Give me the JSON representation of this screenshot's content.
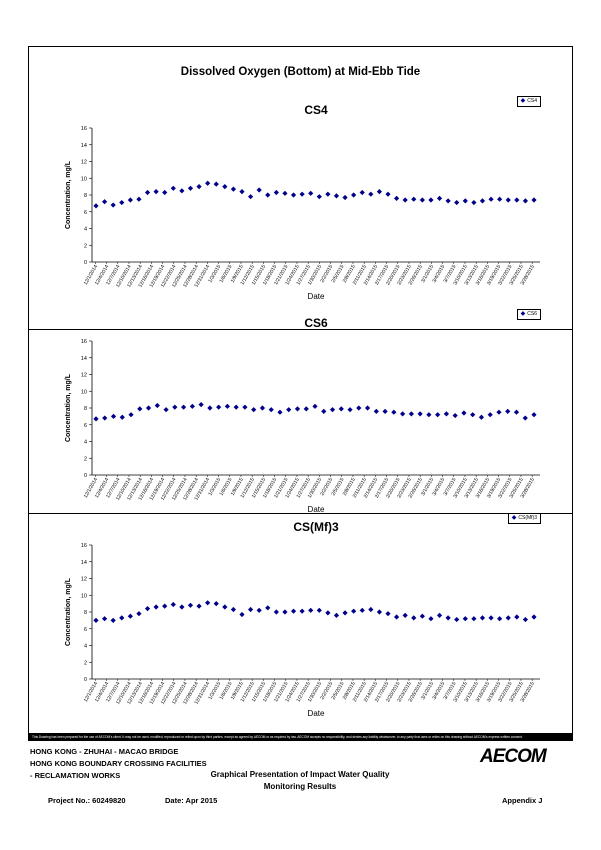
{
  "page": {
    "title": "Dissolved Oxygen (Bottom) at Mid-Ebb Tide"
  },
  "footer": {
    "disclaimer": "This Drawing has been prepared for the use of AECOM's client. It may not be used, modified, reproduced or relied upon by third parties, except as agreed by AECOM or as required by law. AECOM accepts no responsibility, and denies any liability whatsoever, to any party that uses or relies on this drawing without AECOM's express written consent.",
    "line1": "HONG KONG - ZHUHAI - MACAO BRIDGE",
    "line2": "HONG KONG BOUNDARY CROSSING FACILITIES",
    "line3": "- RECLAMATION WORKS",
    "center1": "Graphical Presentation of Impact Water Quality",
    "center2": "Monitoring Results",
    "logo": "AECOM",
    "project": "Project No.: 60249820",
    "date": "Date: Apr 2015",
    "appendix": "Appendix J"
  },
  "colors": {
    "marker": "#00008b"
  },
  "chart_data": [
    {
      "type": "scatter",
      "title": "CS4",
      "xlabel": "Date",
      "ylabel": "Concentration, mg/L",
      "ylim": [
        0,
        16
      ],
      "yticks": [
        "0",
        "2",
        "4",
        "6",
        "8",
        "10",
        "12",
        "14",
        "16"
      ],
      "legend": "top-right",
      "series": [
        {
          "name": "CS4",
          "values": [
            6.7,
            7.2,
            6.8,
            7.1,
            7.4,
            7.5,
            8.3,
            8.4,
            8.3,
            8.8,
            8.5,
            8.8,
            9.0,
            9.4,
            9.3,
            9.0,
            8.7,
            8.4,
            7.8,
            8.6,
            8.0,
            8.3,
            8.2,
            8.0,
            8.1,
            8.2,
            7.8,
            8.1,
            7.9,
            7.7,
            8.0,
            8.3,
            8.1,
            8.4,
            8.1,
            7.6,
            7.4,
            7.5,
            7.4,
            7.4,
            7.6,
            7.3,
            7.1,
            7.3,
            7.1,
            7.3,
            7.5,
            7.5,
            7.4,
            7.4,
            7.3,
            7.4
          ]
        }
      ],
      "xticks": [
        "12/1/2014",
        "12/4/2014",
        "12/7/2014",
        "12/10/2014",
        "12/13/2014",
        "12/16/2014",
        "12/19/2014",
        "12/22/2014",
        "12/25/2014",
        "12/28/2014",
        "12/31/2014",
        "1/3/2015",
        "1/6/2015",
        "1/9/2015",
        "1/12/2015",
        "1/15/2015",
        "1/18/2015",
        "1/21/2015",
        "1/24/2015",
        "1/27/2015",
        "1/30/2015",
        "2/2/2015",
        "2/5/2015",
        "2/8/2015",
        "2/11/2015",
        "2/14/2015",
        "2/17/2015",
        "2/20/2015",
        "2/23/2015",
        "2/26/2015",
        "3/1/2015",
        "3/4/2015",
        "3/7/2015",
        "3/10/2015",
        "3/13/2015",
        "3/16/2015",
        "3/19/2015",
        "3/22/2015",
        "3/25/2015",
        "3/28/2015"
      ]
    },
    {
      "type": "scatter",
      "title": "CS6",
      "xlabel": "Date",
      "ylabel": "Concentration, mg/L",
      "ylim": [
        0,
        16
      ],
      "yticks": [
        "0",
        "2",
        "4",
        "6",
        "8",
        "10",
        "12",
        "14",
        "16"
      ],
      "legend": "top-right",
      "series": [
        {
          "name": "CS6",
          "values": [
            6.7,
            6.8,
            7.0,
            6.9,
            7.2,
            7.9,
            8.0,
            8.3,
            7.8,
            8.1,
            8.1,
            8.2,
            8.4,
            8.0,
            8.1,
            8.2,
            8.1,
            8.1,
            7.8,
            8.0,
            7.8,
            7.5,
            7.8,
            7.9,
            7.9,
            8.2,
            7.6,
            7.8,
            7.9,
            7.8,
            8.0,
            8.0,
            7.6,
            7.6,
            7.5,
            7.3,
            7.3,
            7.3,
            7.2,
            7.2,
            7.3,
            7.1,
            7.4,
            7.2,
            6.9,
            7.2,
            7.5,
            7.6,
            7.5,
            6.8,
            7.2
          ]
        }
      ],
      "xticks": [
        "12/1/2014",
        "12/4/2014",
        "12/7/2014",
        "12/10/2014",
        "12/13/2014",
        "12/16/2014",
        "12/19/2014",
        "12/22/2014",
        "12/25/2014",
        "12/28/2014",
        "12/31/2014",
        "1/3/2015",
        "1/6/2015",
        "1/9/2015",
        "1/12/2015",
        "1/15/2015",
        "1/18/2015",
        "1/21/2015",
        "1/24/2015",
        "1/27/2015",
        "1/30/2015",
        "2/2/2015",
        "2/5/2015",
        "2/8/2015",
        "2/11/2015",
        "2/14/2015",
        "2/17/2015",
        "2/20/2015",
        "2/23/2015",
        "2/26/2015",
        "3/1/2015",
        "3/4/2015",
        "3/7/2015",
        "3/10/2015",
        "3/13/2015",
        "3/16/2015",
        "3/19/2015",
        "3/22/2015",
        "3/25/2015",
        "3/28/2015"
      ]
    },
    {
      "type": "scatter",
      "title": "CS(Mf)3",
      "xlabel": "Date",
      "ylabel": "Concentration, mg/L",
      "ylim": [
        0,
        16
      ],
      "yticks": [
        "0",
        "2",
        "4",
        "6",
        "8",
        "10",
        "12",
        "14",
        "16"
      ],
      "legend": "top-right",
      "series": [
        {
          "name": "CS(Mf)3",
          "values": [
            7.0,
            7.2,
            7.0,
            7.3,
            7.5,
            7.8,
            8.4,
            8.6,
            8.7,
            8.9,
            8.6,
            8.8,
            8.7,
            9.1,
            9.0,
            8.6,
            8.3,
            7.7,
            8.3,
            8.2,
            8.5,
            8.0,
            8.0,
            8.1,
            8.1,
            8.2,
            8.2,
            7.9,
            7.6,
            7.9,
            8.1,
            8.2,
            8.3,
            8.0,
            7.8,
            7.4,
            7.6,
            7.3,
            7.5,
            7.2,
            7.6,
            7.3,
            7.1,
            7.2,
            7.2,
            7.3,
            7.3,
            7.2,
            7.3,
            7.4,
            7.1,
            7.4
          ]
        }
      ],
      "xticks": [
        "12/1/2014",
        "12/4/2014",
        "12/7/2014",
        "12/10/2014",
        "12/13/2014",
        "12/16/2014",
        "12/19/2014",
        "12/22/2014",
        "12/25/2014",
        "12/28/2014",
        "12/31/2014",
        "1/3/2015",
        "1/6/2015",
        "1/9/2015",
        "1/12/2015",
        "1/15/2015",
        "1/18/2015",
        "1/21/2015",
        "1/24/2015",
        "1/27/2015",
        "1/30/2015",
        "2/2/2015",
        "2/5/2015",
        "2/8/2015",
        "2/11/2015",
        "2/14/2015",
        "2/17/2015",
        "2/20/2015",
        "2/23/2015",
        "2/26/2015",
        "3/1/2015",
        "3/4/2015",
        "3/7/2015",
        "3/10/2015",
        "3/13/2015",
        "3/16/2015",
        "3/19/2015",
        "3/22/2015",
        "3/25/2015",
        "3/28/2015"
      ]
    }
  ]
}
